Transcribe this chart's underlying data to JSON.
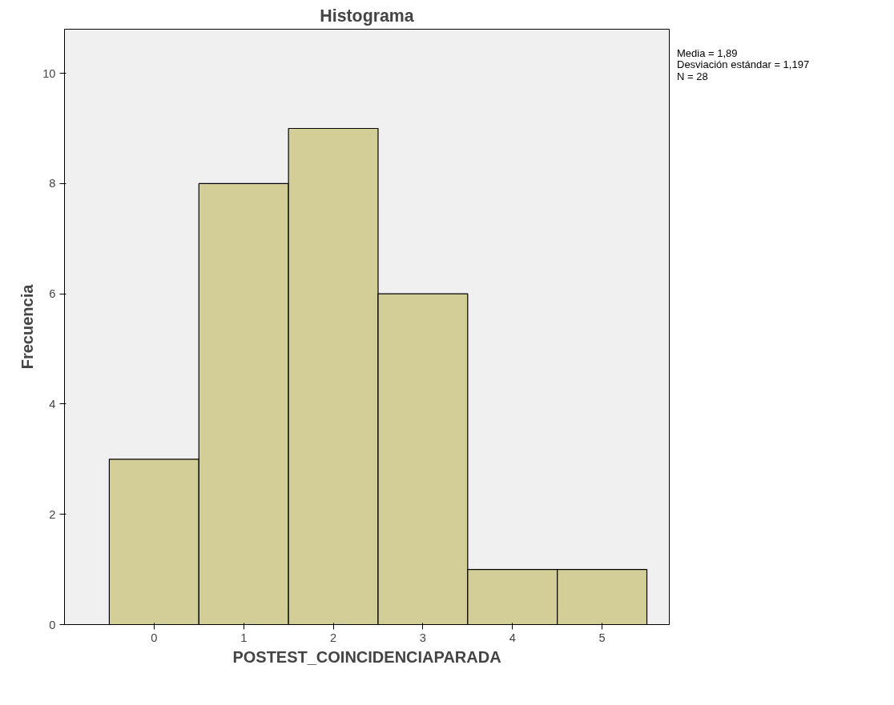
{
  "chart_data": {
    "type": "histogram",
    "title": "Histograma",
    "xlabel": "POSTEST_COINCIDENCIAPARADA",
    "ylabel": "Frecuencia",
    "bins": [
      -0.5,
      0.5,
      1.5,
      2.5,
      3.5,
      4.5,
      5.5
    ],
    "values": [
      3,
      8,
      9,
      6,
      1,
      1
    ],
    "color": "#d3ce97",
    "xlim": [
      -1.0,
      5.75
    ],
    "xticks": [
      0,
      1,
      2,
      3,
      4,
      5
    ],
    "ylim": [
      0,
      10.8
    ],
    "yticks": [
      0,
      2,
      4,
      6,
      8,
      10
    ],
    "grid": false,
    "annotations": [
      "Media = 1,89",
      "Desviación estándar = 1,197",
      "N = 28"
    ]
  }
}
